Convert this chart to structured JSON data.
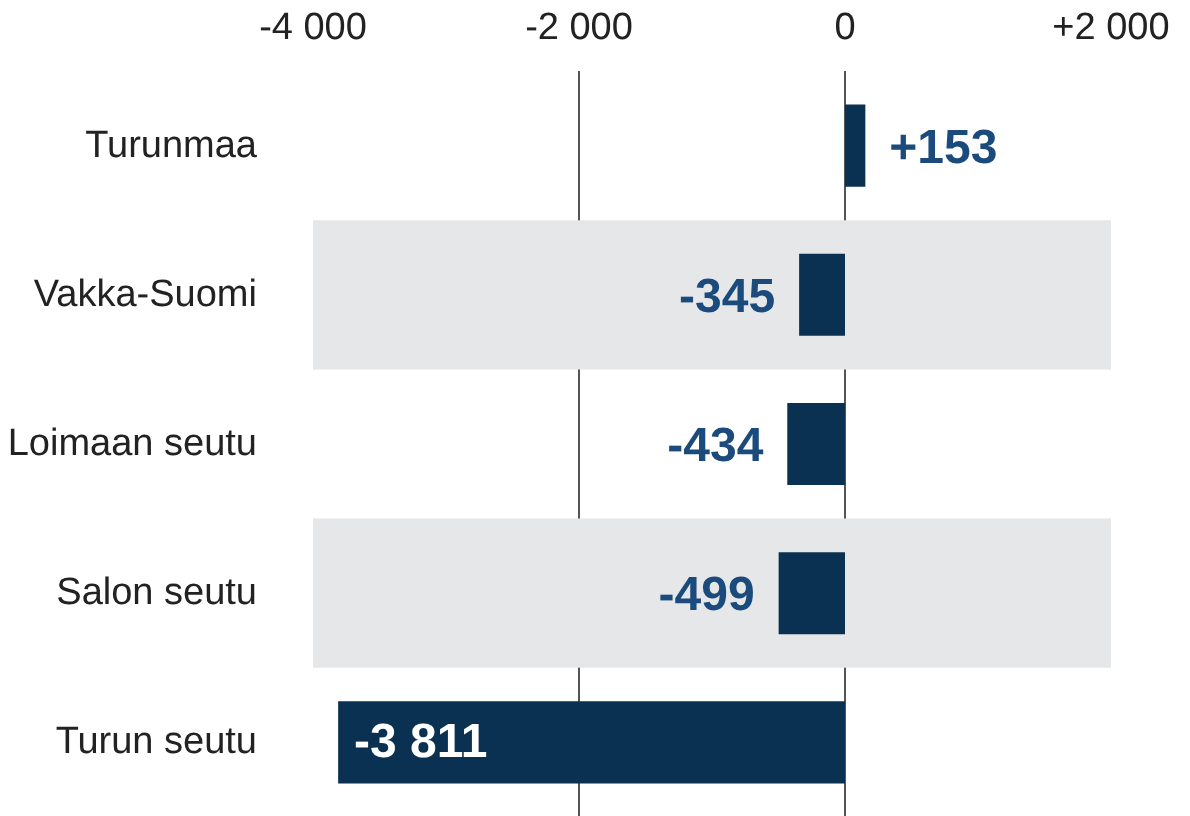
{
  "chart_data": {
    "type": "bar",
    "orientation": "horizontal",
    "categories": [
      "Turunmaa",
      "Vakka-Suomi",
      "Loimaan seutu",
      "Salon seutu",
      "Turun seutu"
    ],
    "values": [
      153,
      -345,
      -434,
      -499,
      -3811
    ],
    "value_labels": [
      "+153",
      "-345",
      "-434",
      "-499",
      "-3 811"
    ],
    "color": "#0b3152",
    "xlim": [
      -4000,
      2000
    ],
    "xticks": [
      {
        "value": -4000,
        "label": "-4 000"
      },
      {
        "value": -2000,
        "label": "-2 000"
      },
      0,
      {
        "value": 2000,
        "label": "+2 000"
      }
    ],
    "grid": "x"
  }
}
